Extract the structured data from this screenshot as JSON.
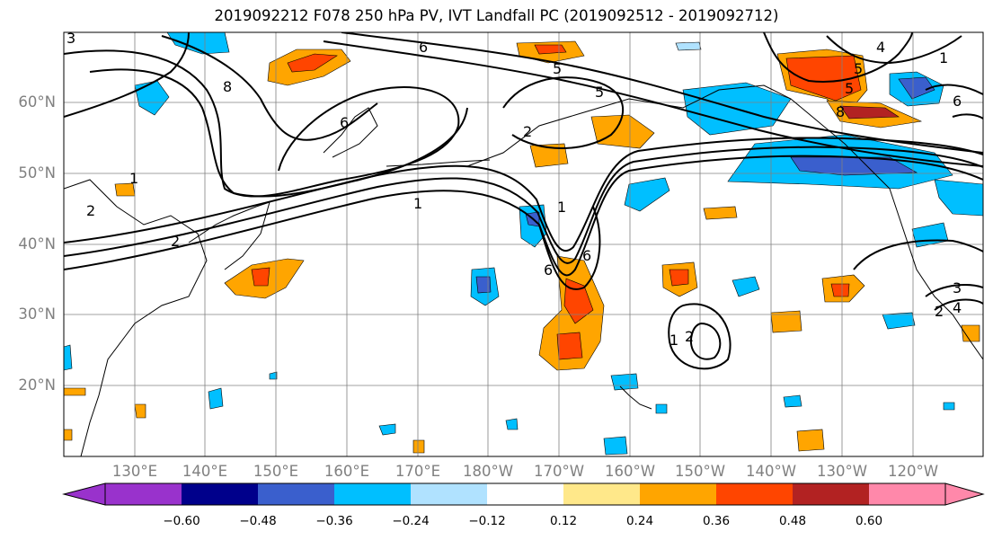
{
  "title": "2019092212 F078 250 hPa PV, IVT Landfall PC (2019092512 - 2019092712)",
  "lat_labels": [
    "60°N",
    "50°N",
    "40°N",
    "30°N",
    "20°N"
  ],
  "lon_labels": [
    "130°E",
    "140°E",
    "150°E",
    "160°E",
    "170°E",
    "180°W",
    "170°W",
    "160°W",
    "150°W",
    "140°W",
    "130°W",
    "120°W"
  ],
  "contour_labels": [
    "6",
    "5",
    "8",
    "6",
    "2",
    "1",
    "2",
    "2",
    "1",
    "6",
    "6",
    "1",
    "2",
    "5",
    "8",
    "4",
    "1",
    "5",
    "3",
    "4",
    "2",
    "5",
    "6",
    "1",
    "3"
  ],
  "colorbar": {
    "ticks": [
      "−0.60",
      "−0.48",
      "−0.36",
      "−0.24",
      "−0.12",
      "0.12",
      "0.24",
      "0.36",
      "0.48",
      "0.60"
    ],
    "colors": [
      "#9932cc",
      "#00008b",
      "#3a5fcd",
      "#00bfff",
      "#b0e2ff",
      "#ffffff",
      "#ffe88a",
      "#ffa500",
      "#ff4500",
      "#b22222",
      "#ff88aa"
    ]
  }
}
